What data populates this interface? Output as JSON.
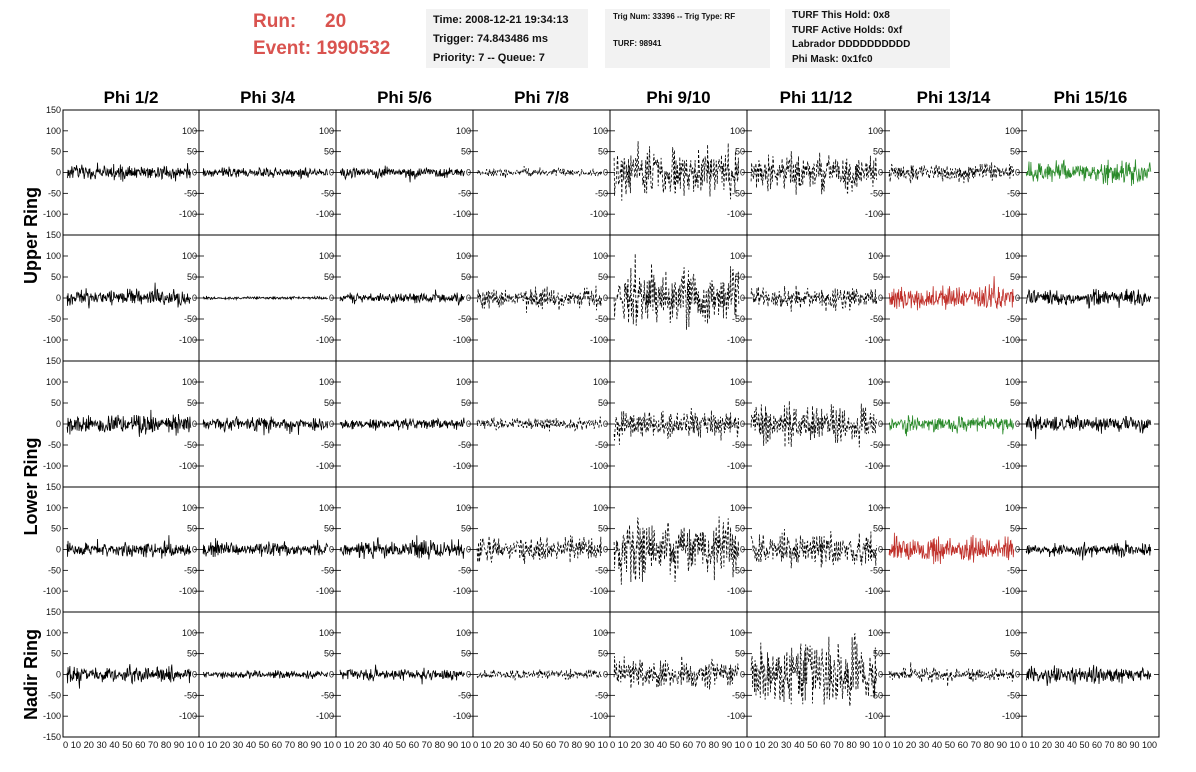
{
  "header": {
    "run_label": "Run:",
    "run_value": "20",
    "event_label": "Event:",
    "event_value": "1990532",
    "accent_color": "#d9534f"
  },
  "info": {
    "time": "Time: 2008-12-21 19:34:13",
    "trigger": "Trigger: 74.843486 ms",
    "priority": "Priority: 7 -- Queue: 7",
    "trig_num": "Trig Num: 33396 -- Trig Type: RF",
    "turf": "TURF: 98941",
    "turf_hold": "TURF This Hold: 0x8",
    "turf_active": "TURF Active Holds: 0xf",
    "labrador": "Labrador DDDDDDDDDD",
    "phi_mask": "Phi Mask: 0x1fc0"
  },
  "chart_data": {
    "type": "line",
    "columns": [
      "Phi 1/2",
      "Phi 3/4",
      "Phi 5/6",
      "Phi 7/8",
      "Phi 9/10",
      "Phi 11/12",
      "Phi 13/14",
      "Phi 15/16"
    ],
    "row_groups": [
      {
        "label": "Upper Ring",
        "rows": [
          0,
          1
        ]
      },
      {
        "label": "Lower Ring",
        "rows": [
          2,
          3
        ]
      },
      {
        "label": "Nadir Ring",
        "rows": [
          4
        ]
      }
    ],
    "xlim": [
      0,
      100
    ],
    "ylim": [
      -150,
      150
    ],
    "y_ticks": [
      -100,
      -50,
      0,
      50,
      100
    ],
    "y_ticks_edge": [
      "-150",
      "150"
    ],
    "x_tick_text": [
      "0 10 20 30 40 50 60 70 80 90 10",
      "0 10 20 30 40 50 60 70 80 90 10",
      "0 10 20 30 40 50 60 70 80 90 10",
      "0 10 20 30 40 50 60 70 80 90 10",
      "0 10 20 30 40 50 60 70 80 90 10",
      "0 10 20 30 40 50 60 70 80 90 10",
      "0 10 20 30 40 50 60 70 80 90 10",
      "0 10 20 30 40 50 60 70 80 90 100"
    ],
    "style_colors": {
      "solid": "#000000",
      "dashed": "#000000",
      "green": "#2a8a2a",
      "red": "#c0302a"
    },
    "panels": [
      [
        {
          "style": "solid",
          "amp": 22
        },
        {
          "style": "solid",
          "amp": 15
        },
        {
          "style": "solid",
          "amp": 17
        },
        {
          "style": "dashed",
          "amp": 12
        },
        {
          "style": "dashed",
          "amp": 75
        },
        {
          "style": "dashed",
          "amp": 55
        },
        {
          "style": "dashed",
          "amp": 28
        },
        {
          "style": "green",
          "amp": 35
        }
      ],
      [
        {
          "style": "solid",
          "amp": 25
        },
        {
          "style": "solid",
          "amp": 4
        },
        {
          "style": "solid",
          "amp": 15
        },
        {
          "style": "dashed",
          "amp": 30
        },
        {
          "style": "dashed",
          "amp": 85
        },
        {
          "style": "dashed",
          "amp": 35
        },
        {
          "style": "red",
          "amp": 35
        },
        {
          "style": "solid",
          "amp": 25
        }
      ],
      [
        {
          "style": "solid",
          "amp": 30
        },
        {
          "style": "solid",
          "amp": 20
        },
        {
          "style": "solid",
          "amp": 17
        },
        {
          "style": "dashed",
          "amp": 18
        },
        {
          "style": "dashed",
          "amp": 45
        },
        {
          "style": "dashed",
          "amp": 60
        },
        {
          "style": "green",
          "amp": 25
        },
        {
          "style": "solid",
          "amp": 25
        }
      ],
      [
        {
          "style": "solid",
          "amp": 22
        },
        {
          "style": "solid",
          "amp": 22
        },
        {
          "style": "solid",
          "amp": 28
        },
        {
          "style": "dashed",
          "amp": 40
        },
        {
          "style": "dashed",
          "amp": 85
        },
        {
          "style": "dashed",
          "amp": 50
        },
        {
          "style": "red",
          "amp": 40
        },
        {
          "style": "solid",
          "amp": 20
        }
      ],
      [
        {
          "style": "solid",
          "amp": 25
        },
        {
          "style": "solid",
          "amp": 12
        },
        {
          "style": "solid",
          "amp": 17
        },
        {
          "style": "dashed",
          "amp": 15
        },
        {
          "style": "dashed",
          "amp": 45
        },
        {
          "style": "dashed",
          "amp": 100
        },
        {
          "style": "dashed",
          "amp": 20
        },
        {
          "style": "solid",
          "amp": 25
        }
      ]
    ]
  }
}
